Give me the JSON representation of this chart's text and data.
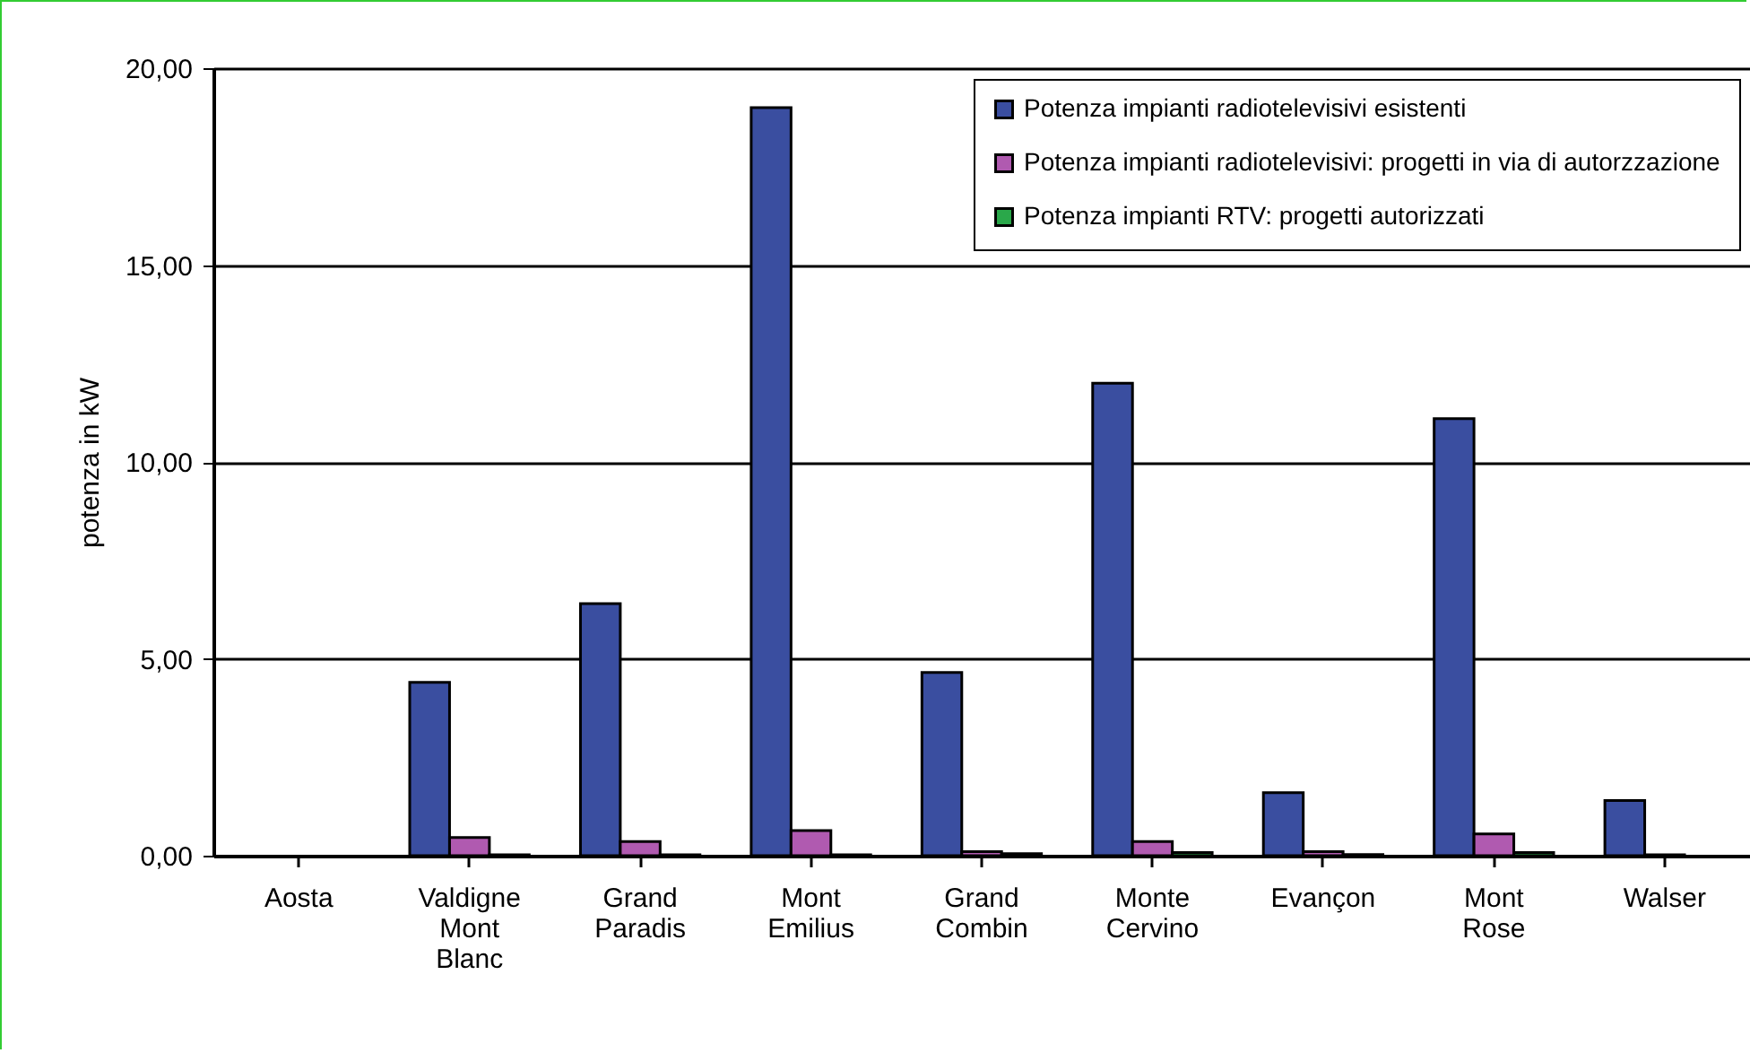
{
  "chart_data": {
    "type": "bar",
    "ylabel": "potenza in kW",
    "categories": [
      "Aosta",
      "Valdigne Mont Blanc",
      "Grand Paradis",
      "Mont Emilius",
      "Grand Combin",
      "Monte Cervino",
      "Evançon",
      "Mont Rose",
      "Walser"
    ],
    "series": [
      {
        "name": "Potenza impianti radiotelevisivi esistenti",
        "color": "#3a4ea0",
        "values": [
          0,
          4.4,
          6.4,
          19.0,
          4.65,
          12.0,
          1.6,
          11.1,
          1.4
        ]
      },
      {
        "name": "Potenza impianti radiotelevisivi: progetti in via di autorzzazione",
        "color": "#b05ab0",
        "values": [
          0,
          0.46,
          0.36,
          0.64,
          0.1,
          0.36,
          0.1,
          0.55,
          0.02
        ]
      },
      {
        "name": "Potenza impianti RTV: progetti autorizzati",
        "color": "#2aa84a",
        "values": [
          0,
          0.02,
          0.02,
          0.02,
          0.05,
          0.08,
          0.03,
          0.08,
          null
        ]
      }
    ],
    "ylim": [
      0,
      20
    ],
    "yticks": [
      {
        "value": 0,
        "label": "0,00"
      },
      {
        "value": 5,
        "label": "5,00"
      },
      {
        "value": 10,
        "label": "10,00"
      },
      {
        "value": 15,
        "label": "15,00"
      },
      {
        "value": 20,
        "label": "20,00"
      }
    ],
    "grid": "y",
    "legend": "top right"
  }
}
